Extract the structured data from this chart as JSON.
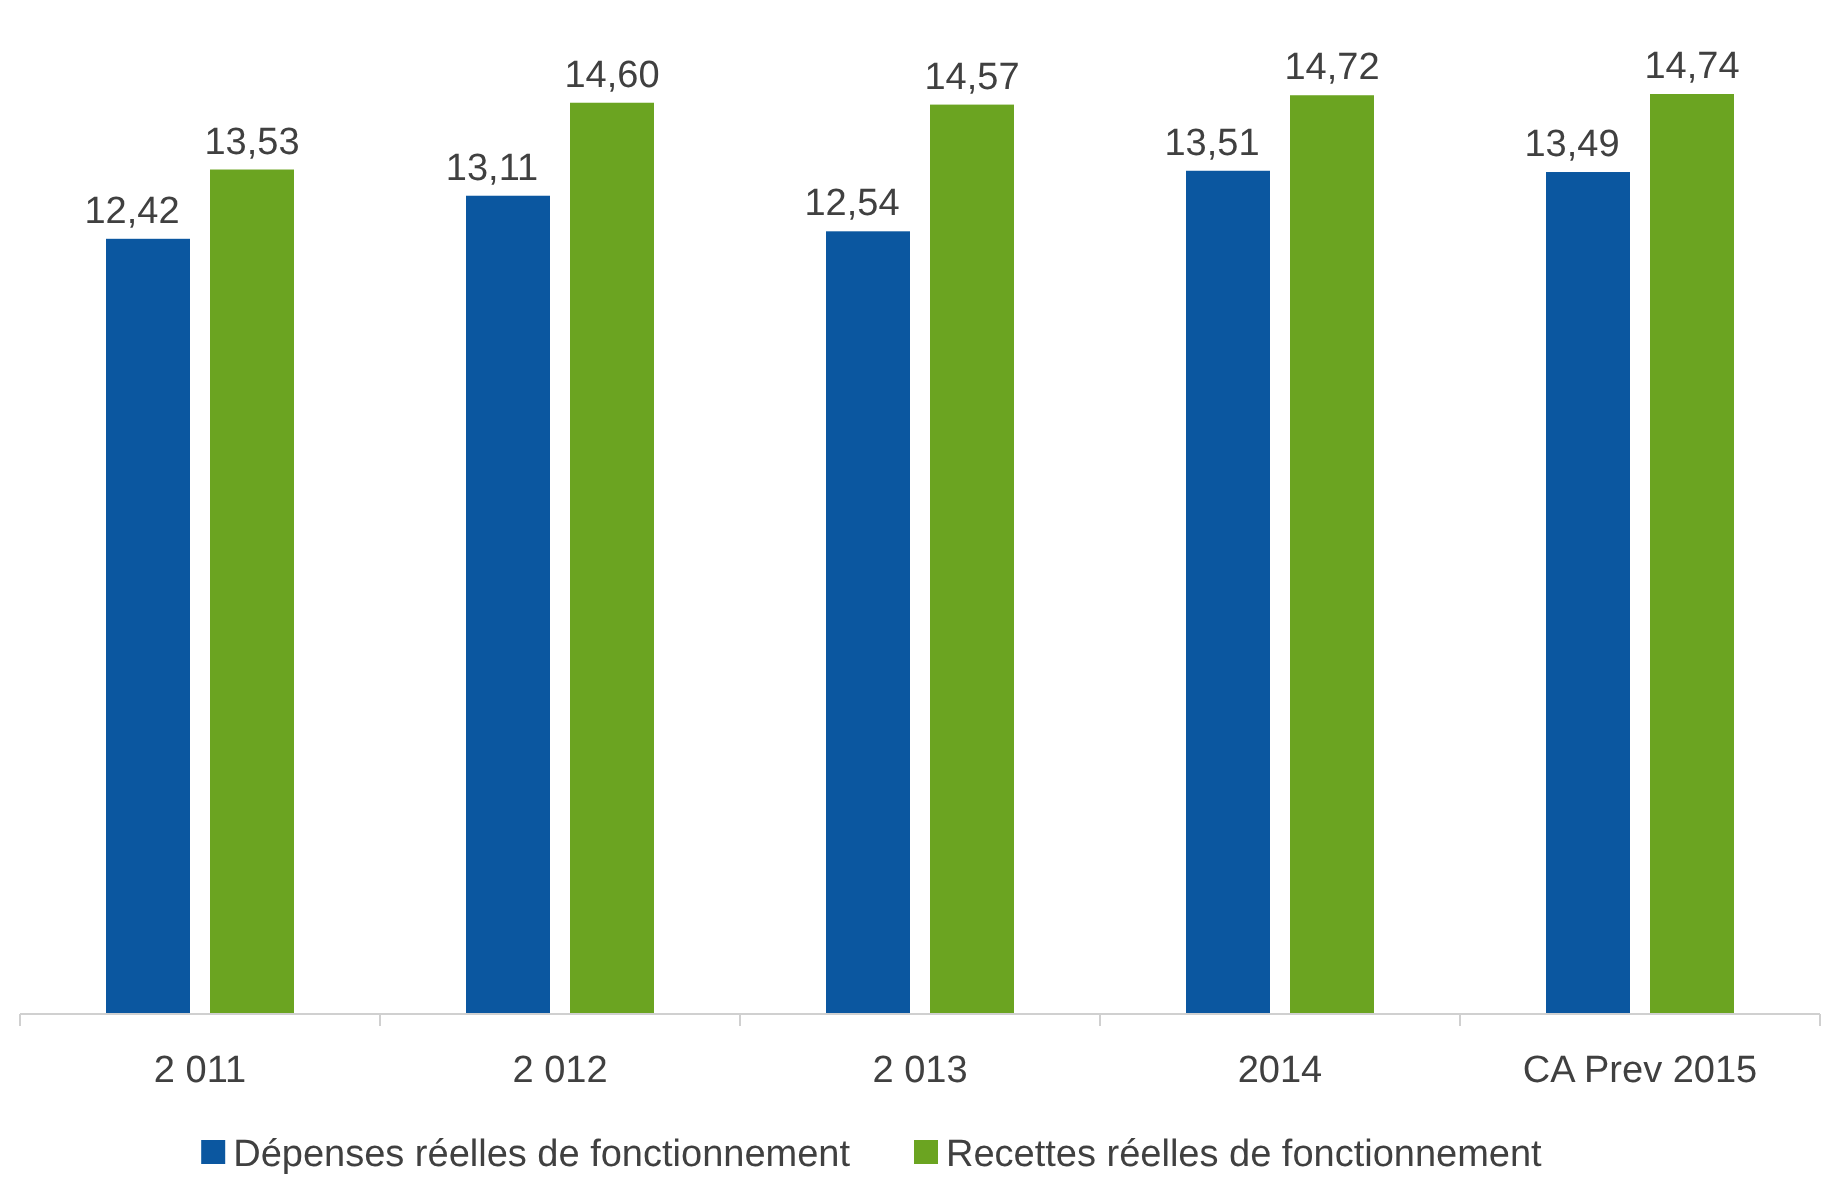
{
  "chart_data": {
    "type": "bar",
    "categories": [
      "2 011",
      "2 012",
      "2 013",
      "2014",
      "CA Prev 2015"
    ],
    "series": [
      {
        "name": "Dépenses réelles de fonctionnement",
        "color": "#0b57a0",
        "values": [
          12.42,
          13.11,
          12.54,
          13.51,
          13.49
        ],
        "value_labels": [
          "12,42",
          "13,11",
          "12,54",
          "13,51",
          "13,49"
        ]
      },
      {
        "name": "Recettes réelles de fonctionnement",
        "color": "#6ba421",
        "values": [
          13.53,
          14.6,
          14.57,
          14.72,
          14.74
        ],
        "value_labels": [
          "13,53",
          "14,60",
          "14,57",
          "14,72",
          "14,74"
        ]
      }
    ],
    "legend": "bottom"
  }
}
